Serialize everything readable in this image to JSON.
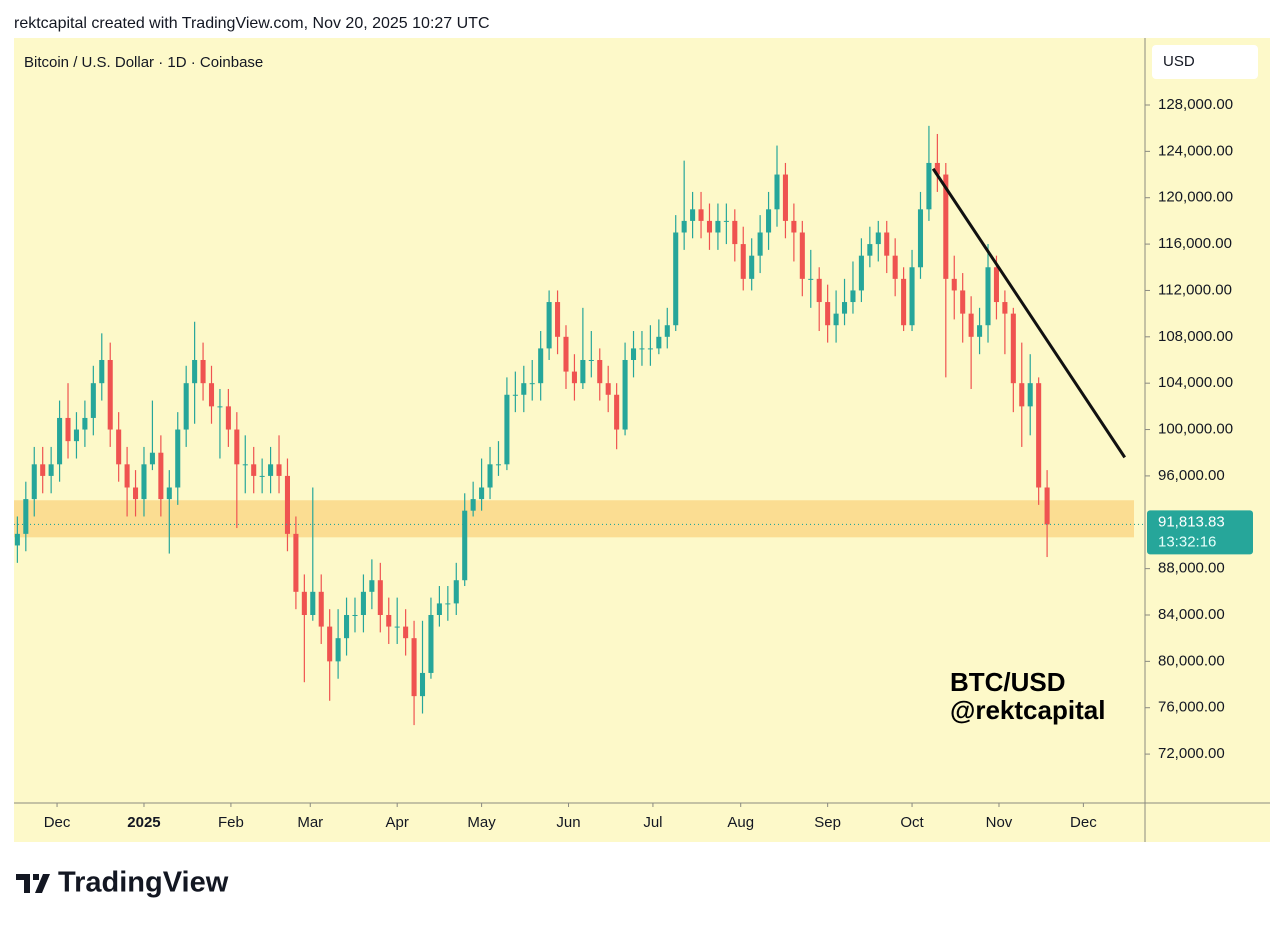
{
  "header": "rektcapital created with TradingView.com, Nov 20, 2025 10:27 UTC",
  "logo": "TradingView",
  "chart_data": {
    "type": "candlestick",
    "title": "Bitcoin / U.S. Dollar · 1D · Coinbase",
    "currency": "USD",
    "up_color": "#26a69a",
    "down_color": "#ef5350",
    "x": [
      0,
      1,
      2,
      3,
      4,
      5,
      6,
      7,
      8,
      9,
      10,
      11,
      12,
      13,
      14,
      15,
      16,
      17,
      18,
      19,
      20,
      21,
      22,
      23,
      24,
      25,
      26,
      27,
      28,
      29,
      30,
      31,
      32,
      33,
      34,
      35,
      36,
      37,
      38,
      39,
      40,
      41,
      42,
      43,
      44,
      45,
      46,
      47,
      48,
      49,
      50,
      51,
      52,
      53,
      54,
      55,
      56,
      57,
      58,
      59,
      60,
      61,
      62,
      63,
      64,
      65,
      66,
      67,
      68,
      69,
      70,
      71,
      72,
      73,
      74,
      75,
      76,
      77,
      78,
      79,
      80,
      81,
      82,
      83,
      84,
      85,
      86,
      87,
      88,
      89,
      90,
      91,
      92,
      93,
      94,
      95,
      96,
      97,
      98,
      99,
      100,
      101,
      102,
      103,
      104,
      105,
      106,
      107,
      108,
      109,
      110,
      111,
      112,
      113,
      114,
      115,
      116,
      117,
      118,
      119,
      120,
      121,
      122
    ],
    "open": [
      90000,
      91000,
      94000,
      97000,
      96000,
      97000,
      101000,
      99000,
      100000,
      101000,
      104000,
      106000,
      100000,
      97000,
      95000,
      94000,
      97000,
      98000,
      94000,
      95000,
      100000,
      104000,
      106000,
      104000,
      102000,
      102000,
      100000,
      97000,
      97000,
      96000,
      96000,
      97000,
      96000,
      91000,
      86000,
      84000,
      86000,
      83000,
      80000,
      82000,
      84000,
      84000,
      86000,
      87000,
      84000,
      83000,
      83000,
      82000,
      77000,
      79000,
      84000,
      85000,
      85000,
      87000,
      93000,
      94000,
      95000,
      97000,
      97000,
      103000,
      103000,
      104000,
      104000,
      107000,
      111000,
      108000,
      105000,
      104000,
      106000,
      106000,
      104000,
      103000,
      100000,
      106000,
      107000,
      107000,
      107000,
      108000,
      109000,
      117000,
      118000,
      119000,
      118000,
      117000,
      118000,
      118000,
      116000,
      113000,
      115000,
      117000,
      119000,
      122000,
      118000,
      117000,
      113000,
      113000,
      111000,
      109000,
      110000,
      111000,
      112000,
      115000,
      116000,
      117000,
      115000,
      113000,
      109000,
      114000,
      119000,
      123000,
      122000,
      113000,
      112000,
      110000,
      108000,
      109000,
      114000,
      111000,
      110000,
      104000,
      102000,
      104000,
      95000
    ],
    "high": [
      92500,
      95500,
      98500,
      98500,
      98500,
      102500,
      104000,
      101500,
      102500,
      105500,
      108300,
      107500,
      101500,
      98500,
      96500,
      98500,
      102500,
      99500,
      96500,
      101500,
      105500,
      109300,
      107500,
      105500,
      103500,
      103500,
      101500,
      99500,
      98500,
      97500,
      98500,
      99500,
      97500,
      92500,
      87500,
      95000,
      87500,
      84500,
      84500,
      85500,
      85500,
      87500,
      88800,
      88500,
      85500,
      85500,
      84500,
      83500,
      83500,
      85500,
      86500,
      86500,
      88500,
      94500,
      95500,
      97500,
      98500,
      99000,
      104500,
      105000,
      105500,
      106000,
      108500,
      112000,
      112000,
      109000,
      106500,
      110500,
      108500,
      107000,
      105500,
      104000,
      107500,
      108500,
      108500,
      109000,
      109500,
      110500,
      118500,
      123200,
      120500,
      120500,
      119500,
      119500,
      119500,
      119000,
      117500,
      116500,
      118500,
      120500,
      124500,
      123000,
      119500,
      118000,
      115500,
      114000,
      112500,
      112000,
      113000,
      114500,
      116500,
      117500,
      118000,
      118000,
      116500,
      114000,
      115500,
      120500,
      126200,
      125500,
      123000,
      115000,
      113500,
      111500,
      110500,
      116000,
      115000,
      112000,
      110500,
      107500,
      106500,
      104500,
      96500
    ],
    "low": [
      88500,
      89500,
      92500,
      94500,
      94500,
      95500,
      97500,
      97500,
      98500,
      99500,
      102500,
      98500,
      95500,
      92500,
      92500,
      92500,
      96500,
      92500,
      89300,
      93500,
      98500,
      100500,
      102500,
      100500,
      97500,
      98500,
      91500,
      94500,
      94500,
      94500,
      94500,
      94500,
      89500,
      84500,
      78200,
      83500,
      81500,
      76600,
      78500,
      80500,
      82500,
      82500,
      84500,
      82500,
      81500,
      81500,
      80500,
      74500,
      75500,
      78500,
      83000,
      83500,
      84000,
      86500,
      92500,
      93000,
      94000,
      96000,
      96500,
      101500,
      101500,
      102500,
      102500,
      106000,
      106500,
      103500,
      102500,
      103500,
      104500,
      102500,
      101500,
      98300,
      99500,
      104500,
      105500,
      105500,
      106500,
      107000,
      108500,
      115500,
      116500,
      116500,
      115500,
      115500,
      116000,
      114500,
      112000,
      112000,
      113500,
      115500,
      117500,
      116500,
      114500,
      111500,
      110500,
      108500,
      107500,
      107500,
      109000,
      110000,
      111000,
      114000,
      114500,
      113500,
      111500,
      108500,
      108500,
      113000,
      118000,
      120500,
      104500,
      109500,
      107500,
      103500,
      106500,
      107500,
      109500,
      106500,
      101500,
      98500,
      99500,
      93500,
      89000
    ],
    "close": [
      91000,
      94000,
      97000,
      96000,
      97000,
      101000,
      99000,
      100000,
      101000,
      104000,
      106000,
      100000,
      97000,
      95000,
      94000,
      97000,
      98000,
      94000,
      95000,
      100000,
      104000,
      106000,
      104000,
      102000,
      102000,
      100000,
      97000,
      97000,
      96000,
      96000,
      97000,
      96000,
      91000,
      86000,
      84000,
      86000,
      83000,
      80000,
      82000,
      84000,
      84000,
      86000,
      87000,
      84000,
      83000,
      83000,
      82000,
      77000,
      79000,
      84000,
      85000,
      85000,
      87000,
      93000,
      94000,
      95000,
      97000,
      97000,
      103000,
      103000,
      104000,
      104000,
      107000,
      111000,
      108000,
      105000,
      104000,
      106000,
      106000,
      104000,
      103000,
      100000,
      106000,
      107000,
      107000,
      107000,
      108000,
      109000,
      117000,
      118000,
      119000,
      118000,
      117000,
      118000,
      118000,
      116000,
      113000,
      115000,
      117000,
      119000,
      122000,
      118000,
      117000,
      113000,
      113000,
      111000,
      109000,
      110000,
      111000,
      112000,
      115000,
      116000,
      117000,
      115000,
      113000,
      109000,
      114000,
      119000,
      123000,
      122000,
      113000,
      112000,
      110000,
      108000,
      109000,
      114000,
      111000,
      110000,
      104000,
      102000,
      104000,
      95000,
      91813.83
    ],
    "last_price": {
      "value": 91813.83,
      "label": "91,813.83"
    },
    "countdown": "13:32:16",
    "xlim": [
      -0.4,
      133.6
    ],
    "xticks": [
      {
        "value": 4.7,
        "label": "Dec"
      },
      {
        "value": 15,
        "label": "2025"
      },
      {
        "value": 25.3,
        "label": "Feb"
      },
      {
        "value": 34.7,
        "label": "Mar"
      },
      {
        "value": 45,
        "label": "Apr"
      },
      {
        "value": 55,
        "label": "May"
      },
      {
        "value": 65.3,
        "label": "Jun"
      },
      {
        "value": 75.3,
        "label": "Jul"
      },
      {
        "value": 85.7,
        "label": "Aug"
      },
      {
        "value": 96,
        "label": "Sep"
      },
      {
        "value": 106,
        "label": "Oct"
      },
      {
        "value": 116.3,
        "label": "Nov"
      },
      {
        "value": 126.3,
        "label": "Dec"
      }
    ],
    "ylim": [
      67780,
      133780
    ],
    "yticks": [
      {
        "value": 72000,
        "label": "72,000.00"
      },
      {
        "value": 76000,
        "label": "76,000.00"
      },
      {
        "value": 80000,
        "label": "80,000.00"
      },
      {
        "value": 84000,
        "label": "84,000.00"
      },
      {
        "value": 88000,
        "label": "88,000.00"
      },
      {
        "value": 96000,
        "label": "96,000.00"
      },
      {
        "value": 100000,
        "label": "100,000.00"
      },
      {
        "value": 104000,
        "label": "104,000.00"
      },
      {
        "value": 108000,
        "label": "108,000.00"
      },
      {
        "value": 112000,
        "label": "112,000.00"
      },
      {
        "value": 116000,
        "label": "116,000.00"
      },
      {
        "value": 120000,
        "label": "120,000.00"
      },
      {
        "value": 124000,
        "label": "124,000.00"
      },
      {
        "value": 128000,
        "label": "128,000.00"
      }
    ],
    "support_zone": {
      "low": 90700,
      "high": 93900,
      "color": "#fbd98c"
    },
    "trendline": {
      "x": [
        108.5,
        131.2
      ],
      "y": [
        122500,
        97600
      ],
      "color": "#111111"
    },
    "annotations": [
      "BTC/USD",
      "@rektcapital"
    ]
  }
}
